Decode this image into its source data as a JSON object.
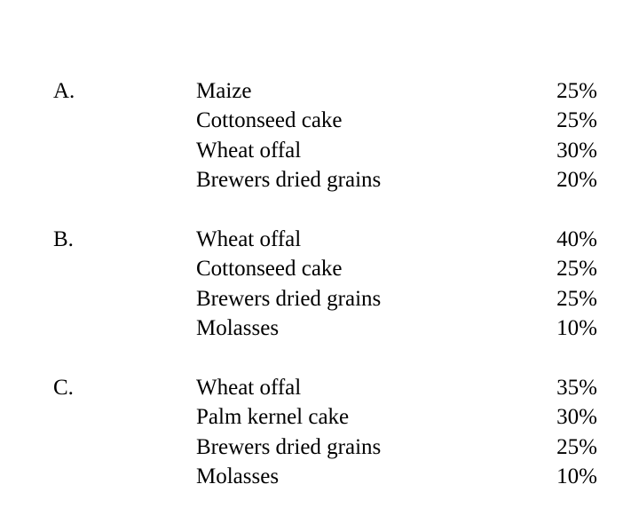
{
  "groups": [
    {
      "letter": "A.",
      "items": [
        {
          "name": "Maize",
          "percent": "25%"
        },
        {
          "name": "Cottonseed cake",
          "percent": "25%"
        },
        {
          "name": "Wheat offal",
          "percent": "30%"
        },
        {
          "name": "Brewers dried grains",
          "percent": "20%"
        }
      ]
    },
    {
      "letter": "B.",
      "items": [
        {
          "name": "Wheat offal",
          "percent": "40%"
        },
        {
          "name": "Cottonseed cake",
          "percent": "25%"
        },
        {
          "name": "Brewers dried grains",
          "percent": "25%"
        },
        {
          "name": "Molasses",
          "percent": "10%"
        }
      ]
    },
    {
      "letter": "C.",
      "items": [
        {
          "name": "Wheat offal",
          "percent": "35%"
        },
        {
          "name": "Palm kernel cake",
          "percent": "30%"
        },
        {
          "name": "Brewers dried grains",
          "percent": "25%"
        },
        {
          "name": "Molasses",
          "percent": "10%"
        }
      ]
    }
  ]
}
